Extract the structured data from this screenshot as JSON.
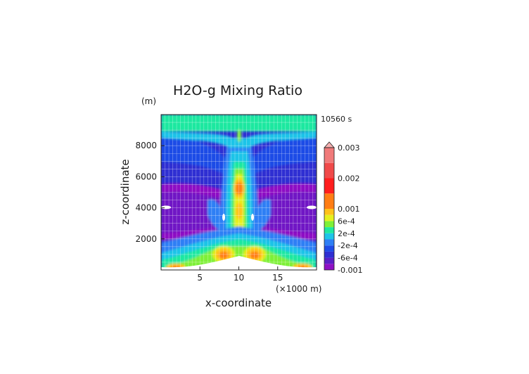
{
  "chart_data": {
    "type": "heatmap",
    "title": "H2O-g Mixing Ratio",
    "time_label": "10560 s",
    "ylabel": "z-coordinate",
    "yunit": "(m)",
    "xlabel": "x-coordinate",
    "xunit": "(×1000 m)",
    "xlim": [
      0,
      20
    ],
    "ylim": [
      0,
      10000
    ],
    "xticks": [
      5,
      10,
      15
    ],
    "yticks": [
      2000,
      4000,
      6000,
      8000
    ],
    "grid": true,
    "colorbar": {
      "levels": [
        -0.001,
        -0.0008,
        -0.0006,
        -0.0004,
        -0.0002,
        0,
        0.0002,
        0.0004,
        0.0006,
        0.0008,
        0.001,
        0.0015,
        0.002,
        0.0025,
        0.003
      ],
      "colors": [
        "#8e10c4",
        "#5a1fc6",
        "#2f2fd2",
        "#1f4be6",
        "#2f7ff5",
        "#1ec4e8",
        "#1ee8a0",
        "#7ef037",
        "#e6f01e",
        "#ffc21a",
        "#ff7d14",
        "#ff1e1e",
        "#f04a4a",
        "#f07a7a",
        "#f5b0b0"
      ],
      "tick_labels": [
        "0.003",
        "0.002",
        "0.001",
        "6e-4",
        "2e-4",
        "-2e-4",
        "-6e-4",
        "-0.001"
      ],
      "tick_values": [
        0.003,
        0.002,
        0.001,
        0.0006,
        0.0002,
        -0.0002,
        -0.0006,
        -0.001
      ]
    }
  }
}
